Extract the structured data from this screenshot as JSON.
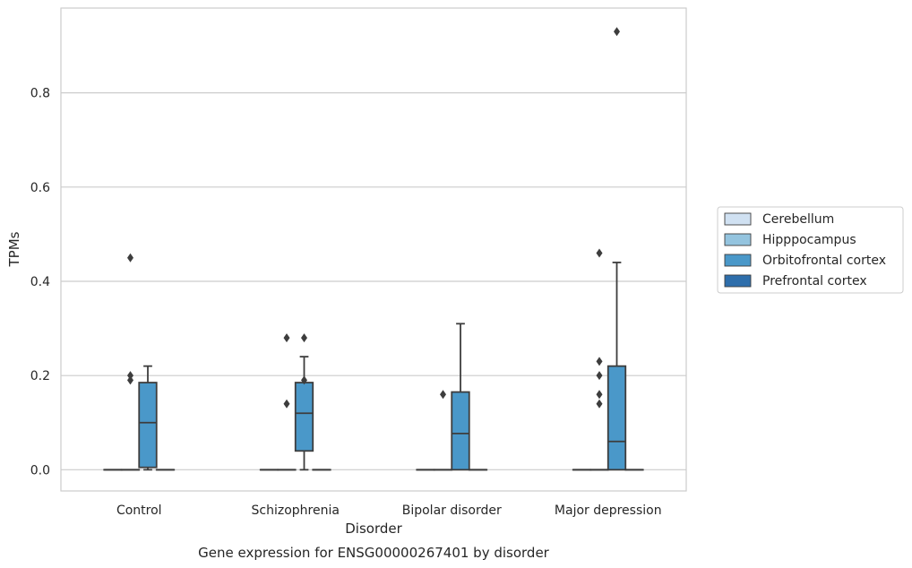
{
  "chart_data": {
    "type": "box",
    "title": "Gene expression for ENSG00000267401 by disorder",
    "xlabel": "Disorder",
    "ylabel": "TPMs",
    "categories": [
      "Control",
      "Schizophrenia",
      "Bipolar disorder",
      "Major depression"
    ],
    "yticks": [
      "0.0",
      "0.2",
      "0.4",
      "0.6",
      "0.8"
    ],
    "ylim": [
      -0.045,
      0.98
    ],
    "grid": "horizontal",
    "legend_position": "right",
    "series": [
      {
        "name": "Cerebellum",
        "color": "#d0e1f2",
        "boxes": [
          {
            "q1": 0,
            "median": 0,
            "q3": 0,
            "whislo": 0,
            "whishi": 0,
            "fliers": []
          },
          {
            "q1": 0,
            "median": 0,
            "q3": 0,
            "whislo": 0,
            "whishi": 0,
            "fliers": []
          },
          {
            "q1": 0,
            "median": 0,
            "q3": 0,
            "whislo": 0,
            "whishi": 0,
            "fliers": []
          },
          {
            "q1": 0,
            "median": 0,
            "q3": 0,
            "whislo": 0,
            "whishi": 0,
            "fliers": []
          }
        ]
      },
      {
        "name": "Hipppocampus",
        "color": "#94c4df",
        "boxes": [
          {
            "q1": 0,
            "median": 0,
            "q3": 0,
            "whislo": 0,
            "whishi": 0,
            "fliers": [
              0.19,
              0.2,
              0.45
            ]
          },
          {
            "q1": 0,
            "median": 0,
            "q3": 0,
            "whislo": 0,
            "whishi": 0,
            "fliers": [
              0.14,
              0.28
            ]
          },
          {
            "q1": 0,
            "median": 0,
            "q3": 0,
            "whislo": 0,
            "whishi": 0,
            "fliers": [
              0.16
            ]
          },
          {
            "q1": 0,
            "median": 0,
            "q3": 0,
            "whislo": 0,
            "whishi": 0,
            "fliers": [
              0.14,
              0.16,
              0.2,
              0.23,
              0.46
            ]
          }
        ]
      },
      {
        "name": "Orbitofrontal cortex",
        "color": "#4a98c9",
        "boxes": [
          {
            "q1": 0.005,
            "median": 0.1,
            "q3": 0.185,
            "whislo": 0,
            "whishi": 0.22,
            "fliers": []
          },
          {
            "q1": 0.04,
            "median": 0.12,
            "q3": 0.185,
            "whislo": 0,
            "whishi": 0.24,
            "fliers": [
              0.28,
              0.19
            ]
          },
          {
            "q1": 0,
            "median": 0.077,
            "q3": 0.165,
            "whislo": 0,
            "whishi": 0.31,
            "fliers": []
          },
          {
            "q1": 0,
            "median": 0.06,
            "q3": 0.22,
            "whislo": 0,
            "whishi": 0.44,
            "fliers": [
              0.93
            ]
          }
        ]
      },
      {
        "name": "Prefrontal cortex",
        "color": "#2e6eab",
        "boxes": [
          {
            "q1": 0,
            "median": 0,
            "q3": 0,
            "whislo": 0,
            "whishi": 0,
            "fliers": []
          },
          {
            "q1": 0,
            "median": 0,
            "q3": 0,
            "whislo": 0,
            "whishi": 0,
            "fliers": []
          },
          {
            "q1": 0,
            "median": 0,
            "q3": 0,
            "whislo": 0,
            "whishi": 0,
            "fliers": []
          },
          {
            "q1": 0,
            "median": 0,
            "q3": 0,
            "whislo": 0,
            "whishi": 0,
            "fliers": []
          }
        ]
      }
    ]
  }
}
